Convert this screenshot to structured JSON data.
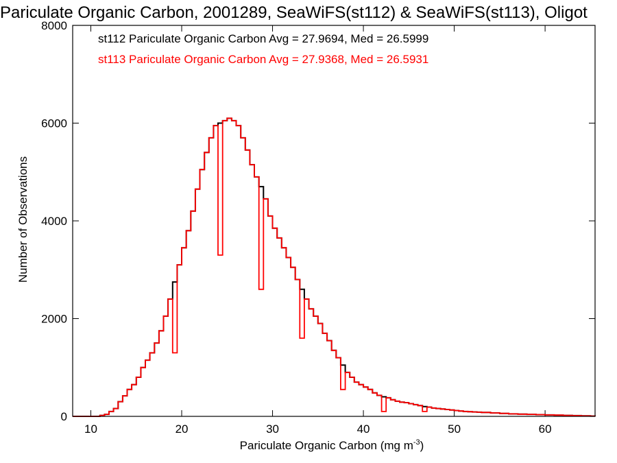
{
  "chart_data": {
    "type": "line",
    "title": "Pariculate Organic Carbon, 2001289, SeaWiFS(st112) & SeaWiFS(st113), Oligot",
    "xlabel": "Pariculate Organic Carbon (mg m",
    "xlabel_sup": "-3",
    "xlabel_close": ")",
    "ylabel": "Number of Observations",
    "xlim": [
      8,
      65.5
    ],
    "ylim": [
      0,
      8000
    ],
    "xticks": [
      10,
      20,
      30,
      40,
      50,
      60
    ],
    "yticks": [
      0,
      2000,
      4000,
      6000,
      8000
    ],
    "grid": false,
    "annotations": [
      {
        "text": "st112 Pariculate Organic Carbon Avg = 27.9694, Med = 26.5999",
        "color": "#000000"
      },
      {
        "text": "st113 Pariculate Organic Carbon Avg = 27.9368, Med = 26.5931",
        "color": "#ff0000"
      }
    ],
    "series": [
      {
        "color": "#000000",
        "x": [
          8,
          10,
          11,
          11.5,
          12,
          12.5,
          13,
          13.5,
          14,
          14.5,
          15,
          15.5,
          16,
          16.5,
          17,
          17.5,
          18,
          18.5,
          19,
          19.5,
          20,
          20.5,
          21,
          21.5,
          22,
          22.5,
          23,
          23.5,
          24,
          24.5,
          25,
          25.5,
          26,
          26.5,
          27,
          27.5,
          28,
          28.5,
          29,
          29.5,
          30,
          30.5,
          31,
          31.5,
          32,
          32.5,
          33,
          33.5,
          34,
          34.5,
          35,
          35.5,
          36,
          36.5,
          37,
          37.5,
          38,
          38.5,
          39,
          39.5,
          40,
          40.5,
          41,
          41.5,
          42,
          42.5,
          43,
          43.5,
          44,
          44.5,
          45,
          45.5,
          46,
          46.5,
          47,
          47.5,
          48,
          48.5,
          49,
          49.5,
          50,
          50.5,
          51,
          51.5,
          52,
          52.5,
          53,
          54,
          55,
          56,
          57,
          58,
          59,
          60,
          61,
          62,
          63,
          64,
          65,
          65.5
        ],
        "y": [
          0,
          0,
          20,
          40,
          100,
          160,
          300,
          420,
          550,
          650,
          800,
          1000,
          1150,
          1300,
          1500,
          1750,
          2050,
          2400,
          2750,
          3100,
          3450,
          3800,
          4200,
          4650,
          5050,
          5400,
          5700,
          5950,
          6000,
          6050,
          6100,
          6050,
          5950,
          5700,
          5450,
          5150,
          4900,
          4700,
          4450,
          4100,
          3850,
          3650,
          3450,
          3250,
          3050,
          2800,
          2600,
          2400,
          2200,
          2050,
          1900,
          1700,
          1550,
          1350,
          1200,
          1050,
          900,
          800,
          700,
          650,
          600,
          550,
          480,
          430,
          400,
          380,
          340,
          310,
          290,
          280,
          260,
          240,
          220,
          200,
          190,
          170,
          160,
          150,
          140,
          130,
          120,
          110,
          100,
          95,
          90,
          85,
          80,
          70,
          60,
          50,
          45,
          40,
          35,
          30,
          25,
          20,
          15,
          10,
          5,
          0
        ]
      },
      {
        "color": "#ff0000",
        "x": [
          8,
          10,
          11,
          11.5,
          12,
          12.5,
          13,
          13.5,
          14,
          14.5,
          15,
          15.5,
          16,
          16.5,
          17,
          17.5,
          18,
          18.5,
          19,
          19.5,
          20,
          20.5,
          21,
          21.5,
          22,
          22.5,
          23,
          23.5,
          24,
          24.5,
          25,
          25.5,
          26,
          26.5,
          27,
          27.5,
          28,
          28.5,
          29,
          29.5,
          30,
          30.5,
          31,
          31.5,
          32,
          32.5,
          33,
          33.5,
          34,
          34.5,
          35,
          35.5,
          36,
          36.5,
          37,
          37.5,
          38,
          38.5,
          39,
          39.5,
          40,
          40.5,
          41,
          41.5,
          42,
          42.5,
          43,
          43.5,
          44,
          44.5,
          45,
          45.5,
          46,
          46.5,
          47,
          47.5,
          48,
          48.5,
          49,
          49.5,
          50,
          50.5,
          51,
          51.5,
          52,
          52.5,
          53,
          54,
          55,
          56,
          57,
          58,
          59,
          60,
          61,
          62,
          63,
          64,
          65,
          65.5
        ],
        "y": [
          0,
          0,
          20,
          40,
          100,
          160,
          300,
          420,
          550,
          650,
          800,
          1000,
          1150,
          1300,
          1500,
          1750,
          2050,
          2400,
          1300,
          3100,
          3450,
          3800,
          4200,
          4650,
          5050,
          5400,
          5700,
          5950,
          3300,
          6050,
          6100,
          6050,
          5950,
          5700,
          5450,
          5150,
          4900,
          2600,
          4450,
          4100,
          3850,
          3650,
          3450,
          3250,
          3050,
          2800,
          1600,
          2400,
          2200,
          2050,
          1900,
          1700,
          1550,
          1350,
          1200,
          550,
          900,
          800,
          700,
          650,
          600,
          550,
          480,
          430,
          100,
          380,
          340,
          310,
          290,
          280,
          260,
          240,
          220,
          100,
          190,
          170,
          160,
          150,
          140,
          130,
          120,
          110,
          100,
          95,
          90,
          85,
          80,
          70,
          60,
          50,
          45,
          40,
          35,
          30,
          25,
          20,
          15,
          10,
          5,
          0
        ]
      }
    ]
  }
}
